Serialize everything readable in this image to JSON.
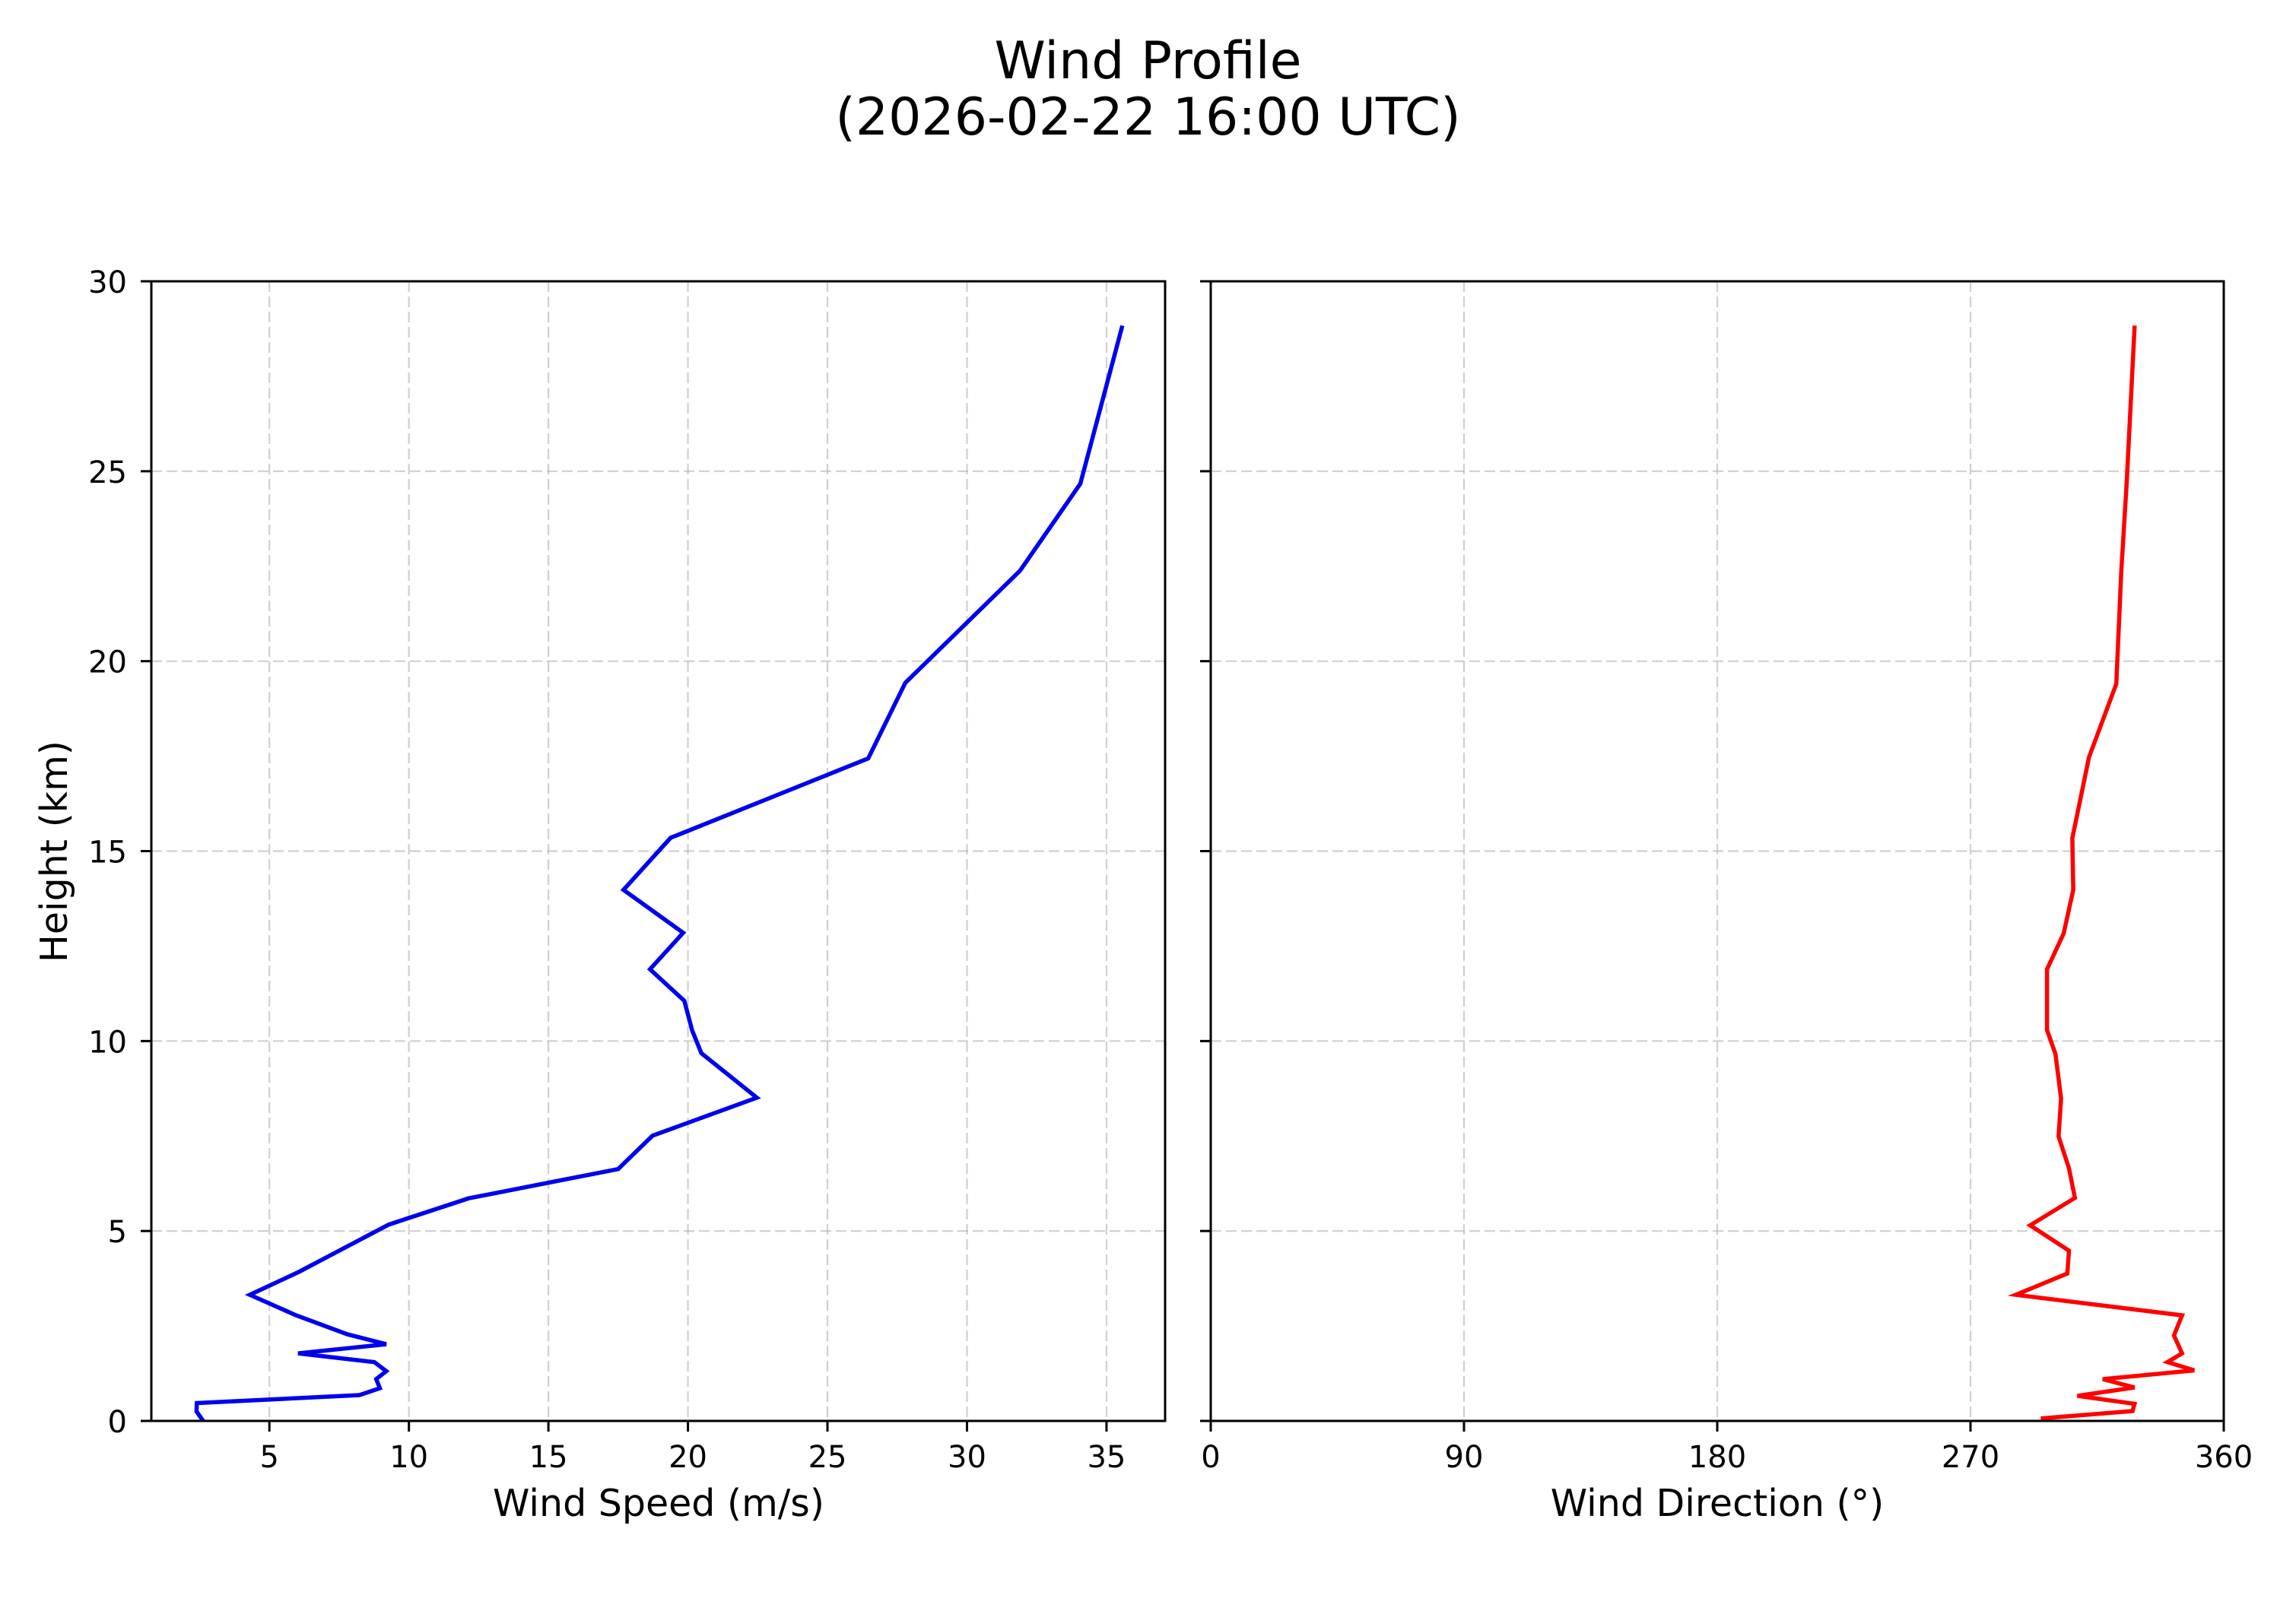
{
  "figure": {
    "title_line1": "Wind Profile",
    "title_line2": "(2026-02-22 16:00 UTC)"
  },
  "chart_data": [
    {
      "type": "line",
      "panel": "left",
      "title": "Wind Profile (2026-02-22 16:00 UTC)",
      "xlabel": "Wind Speed (m/s)",
      "ylabel": "Height (km)",
      "xlim": [
        0.77,
        37.1
      ],
      "ylim": [
        0,
        30
      ],
      "xticks": [
        5,
        10,
        15,
        20,
        25,
        30,
        35
      ],
      "yticks": [
        0,
        5,
        10,
        15,
        20,
        25,
        30
      ],
      "grid": true,
      "grid_style": "dashed",
      "legend": null,
      "series": [
        {
          "name": "Wind Speed",
          "color": "#0000ee",
          "x": [
            2.58,
            2.39,
            2.4,
            8.23,
            8.96,
            8.83,
            9.19,
            8.76,
            6.03,
            9.19,
            7.8,
            5.96,
            4.3,
            6.05,
            9.28,
            12.14,
            17.5,
            18.73,
            22.47,
            20.48,
            20.15,
            19.87,
            18.64,
            19.83,
            17.69,
            19.38,
            26.46,
            27.79,
            31.9,
            34.06,
            35.55
          ],
          "y": [
            0.05,
            0.25,
            0.47,
            0.68,
            0.86,
            1.1,
            1.31,
            1.55,
            1.78,
            2.02,
            2.28,
            2.78,
            3.32,
            3.92,
            5.17,
            5.86,
            6.63,
            7.51,
            8.51,
            9.68,
            10.28,
            11.06,
            11.89,
            12.85,
            13.98,
            15.35,
            17.44,
            19.43,
            22.38,
            24.67,
            28.78
          ]
        }
      ]
    },
    {
      "type": "line",
      "panel": "right",
      "xlabel": "Wind Direction (°)",
      "ylabel": "",
      "xlim": [
        0,
        360
      ],
      "ylim": [
        0,
        30
      ],
      "xticks": [
        0,
        90,
        180,
        270,
        360
      ],
      "yticks": [
        0,
        5,
        10,
        15,
        20,
        25,
        30
      ],
      "ytick_labels_visible": false,
      "grid": true,
      "grid_style": "dashed",
      "legend": null,
      "series": [
        {
          "name": "Wind Direction",
          "color": "#ff0000",
          "x": [
            295.7,
            327.6,
            328.3,
            308.0,
            328.3,
            317.0,
            349.5,
            340.0,
            345.2,
            342.3,
            345.2,
            286.1,
            304.4,
            305.0,
            291.2,
            307.1,
            305.0,
            301.3,
            302.2,
            300.2,
            297.2,
            297.2,
            303.1,
            306.5,
            306.2,
            312.1,
            321.8,
            323.6,
            325.5,
            328.3
          ],
          "y": [
            0.07,
            0.26,
            0.45,
            0.66,
            0.88,
            1.1,
            1.33,
            1.55,
            1.78,
            2.25,
            2.78,
            3.32,
            3.88,
            4.48,
            5.15,
            5.87,
            6.65,
            7.49,
            8.49,
            9.66,
            10.29,
            11.89,
            12.83,
            13.98,
            15.34,
            17.47,
            19.4,
            22.38,
            24.67,
            28.78
          ]
        }
      ]
    }
  ],
  "axes": {
    "left": {
      "xlabel": "Wind Speed (m/s)",
      "ylabel": "Height (km)",
      "xtick_labels": [
        "5",
        "10",
        "15",
        "20",
        "25",
        "30",
        "35"
      ],
      "ytick_labels": [
        "0",
        "5",
        "10",
        "15",
        "20",
        "25",
        "30"
      ]
    },
    "right": {
      "xlabel": "Wind Direction (°)",
      "xtick_labels": [
        "0",
        "90",
        "180",
        "270",
        "360"
      ]
    }
  }
}
